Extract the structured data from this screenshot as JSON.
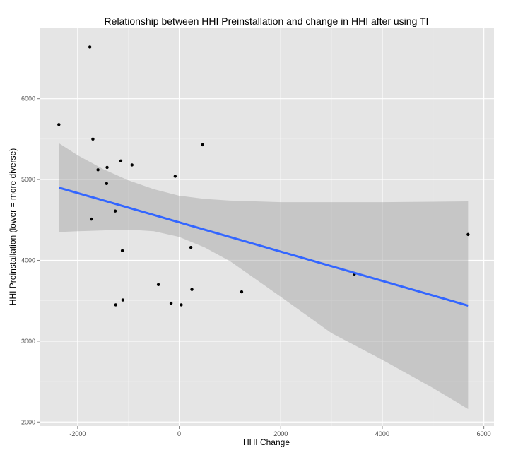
{
  "chart_data": {
    "type": "scatter",
    "title": "Relationship between HHI Preinstallation and change in HHI after using TI",
    "xlabel": "HHI Change",
    "ylabel": "HHI Preinstallation (lower = more diverse)",
    "xlim": [
      -2750,
      6200
    ],
    "ylim": [
      1950,
      6880
    ],
    "xticks": [
      -2000,
      0,
      2000,
      4000,
      6000
    ],
    "yticks": [
      2000,
      3000,
      4000,
      5000,
      6000
    ],
    "grid": true,
    "points": [
      {
        "x": -2370,
        "y": 5680
      },
      {
        "x": -1760,
        "y": 6640
      },
      {
        "x": -1700,
        "y": 5500
      },
      {
        "x": -1600,
        "y": 5120
      },
      {
        "x": -1420,
        "y": 5150
      },
      {
        "x": -1430,
        "y": 4950
      },
      {
        "x": -1730,
        "y": 4510
      },
      {
        "x": -1260,
        "y": 4610
      },
      {
        "x": -1150,
        "y": 5230
      },
      {
        "x": -930,
        "y": 5180
      },
      {
        "x": -1120,
        "y": 4120
      },
      {
        "x": -1110,
        "y": 3510
      },
      {
        "x": -1250,
        "y": 3450
      },
      {
        "x": -410,
        "y": 3700
      },
      {
        "x": -160,
        "y": 3470
      },
      {
        "x": 40,
        "y": 3450
      },
      {
        "x": -80,
        "y": 5040
      },
      {
        "x": 230,
        "y": 4160
      },
      {
        "x": 250,
        "y": 3640
      },
      {
        "x": 460,
        "y": 5430
      },
      {
        "x": 1230,
        "y": 3610
      },
      {
        "x": 3450,
        "y": 3830
      },
      {
        "x": 5690,
        "y": 4320
      }
    ],
    "fit_line": {
      "x": [
        -2370,
        5690
      ],
      "y": [
        4900,
        3440
      ],
      "color": "#3366FF"
    },
    "confidence_band": {
      "x": [
        -2370,
        -2000,
        -1500,
        -1000,
        -500,
        0,
        500,
        1000,
        2000,
        3000,
        4000,
        5000,
        5690
      ],
      "upper": [
        5450,
        5300,
        5130,
        4990,
        4880,
        4800,
        4760,
        4740,
        4720,
        4720,
        4720,
        4725,
        4730
      ],
      "lower": [
        4350,
        4360,
        4370,
        4380,
        4360,
        4290,
        4160,
        3990,
        3550,
        3100,
        2770,
        2420,
        2160
      ],
      "color": "#999999"
    },
    "colors": {
      "panel_background": "#E5E5E5",
      "grid_major": "#FFFFFF",
      "grid_minor": "#F2F2F2",
      "point": "#000000"
    }
  }
}
